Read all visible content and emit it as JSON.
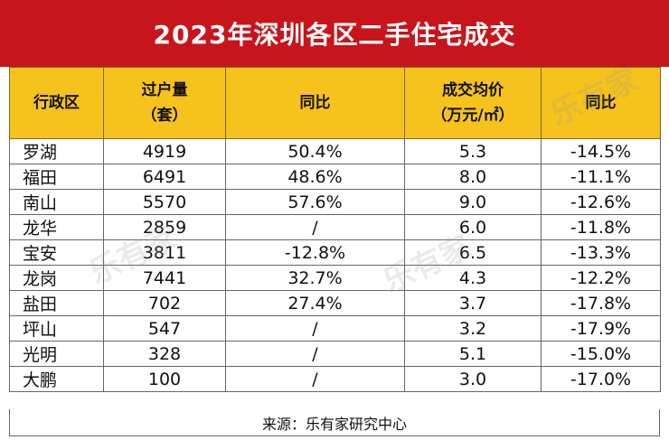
{
  "title": "2023年深圳各区二手住宅成交",
  "headers": [
    {
      "line1": "行政区",
      "line2": ""
    },
    {
      "line1": "过户量",
      "line2": "（套）"
    },
    {
      "line1": "同比",
      "line2": ""
    },
    {
      "line1": "成交均价",
      "line2": "（万元/㎡）"
    },
    {
      "line1": "同比",
      "line2": ""
    }
  ],
  "rows": [
    {
      "district": "罗湖",
      "transfers": "4919",
      "transfers_yoy": "50.4%",
      "avg_price": "5.3",
      "price_yoy": "-14.5%"
    },
    {
      "district": "福田",
      "transfers": "6491",
      "transfers_yoy": "48.6%",
      "avg_price": "8.0",
      "price_yoy": "-11.1%"
    },
    {
      "district": "南山",
      "transfers": "5570",
      "transfers_yoy": "57.6%",
      "avg_price": "9.0",
      "price_yoy": "-12.6%"
    },
    {
      "district": "龙华",
      "transfers": "2859",
      "transfers_yoy": "/",
      "avg_price": "6.0",
      "price_yoy": "-11.8%"
    },
    {
      "district": "宝安",
      "transfers": "3811",
      "transfers_yoy": "-12.8%",
      "avg_price": "6.5",
      "price_yoy": "-13.3%"
    },
    {
      "district": "龙岗",
      "transfers": "7441",
      "transfers_yoy": "32.7%",
      "avg_price": "4.3",
      "price_yoy": "-12.2%"
    },
    {
      "district": "盐田",
      "transfers": "702",
      "transfers_yoy": "27.4%",
      "avg_price": "3.7",
      "price_yoy": "-17.8%"
    },
    {
      "district": "坪山",
      "transfers": "547",
      "transfers_yoy": "/",
      "avg_price": "3.2",
      "price_yoy": "-17.9%"
    },
    {
      "district": "光明",
      "transfers": "328",
      "transfers_yoy": "/",
      "avg_price": "5.1",
      "price_yoy": "-15.0%"
    },
    {
      "district": "大鹏",
      "transfers": "100",
      "transfers_yoy": "/",
      "avg_price": "3.0",
      "price_yoy": "-17.0%"
    }
  ],
  "source": "来源：乐有家研究中心",
  "watermark": "乐有家",
  "colors": {
    "title_bg": "#c8151b",
    "header_bg": "#f6c21c"
  }
}
